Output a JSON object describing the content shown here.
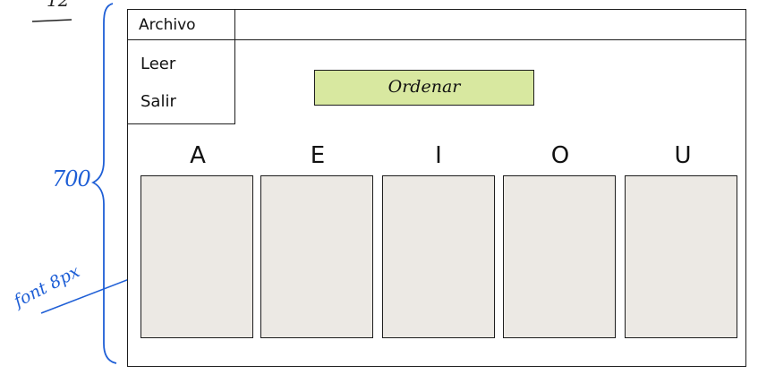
{
  "window": {
    "menu": {
      "archivo_label": "Archivo",
      "items": [
        {
          "label": "Leer"
        },
        {
          "label": "Salir"
        }
      ]
    },
    "sort_button_label": "Ordenar",
    "vowels": [
      {
        "letter": "A"
      },
      {
        "letter": "E"
      },
      {
        "letter": "I"
      },
      {
        "letter": "O"
      },
      {
        "letter": "U"
      }
    ]
  },
  "annotations": {
    "height_label": "700",
    "font_label": "font 8px",
    "corner_mark": "12"
  },
  "colors": {
    "button_fill": "#d8e8a0",
    "list_fill": "#ece9e4",
    "annotation": "#1f5fd6"
  }
}
